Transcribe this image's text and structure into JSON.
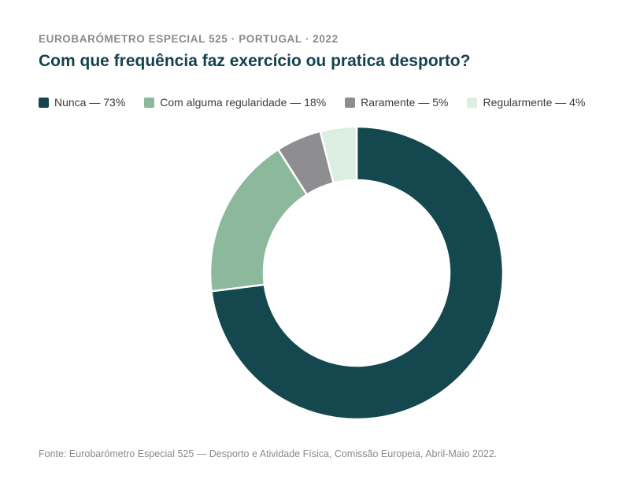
{
  "kicker": "EUROBARÓMETRO ESPECIAL 525 · PORTUGAL · 2022",
  "title": "Com que frequência faz exercício ou pratica desporto?",
  "legend": [
    {
      "label": "Nunca — 73%",
      "color": "#15474f"
    },
    {
      "label": "Com alguma regularidade — 18%",
      "color": "#8cb89b"
    },
    {
      "label": "Raramente — 5%",
      "color": "#8d8d92"
    },
    {
      "label": "Regularmente — 4%",
      "color": "#dcede2"
    }
  ],
  "source": "Fonte: Eurobarómetro Especial 525 — Desporto e Atividade Física, Comissão Europeia, Abril-Maio 2022.",
  "chart_data": {
    "type": "pie",
    "donut": true,
    "categories": [
      "Nunca",
      "Com alguma regularidade",
      "Raramente",
      "Regularmente"
    ],
    "values": [
      73,
      18,
      5,
      4
    ],
    "unit": "%",
    "colors": [
      "#15474f",
      "#8cb89b",
      "#8d8d92",
      "#dcede2"
    ],
    "start": "top, clockwise",
    "legend_position": "top-left"
  }
}
